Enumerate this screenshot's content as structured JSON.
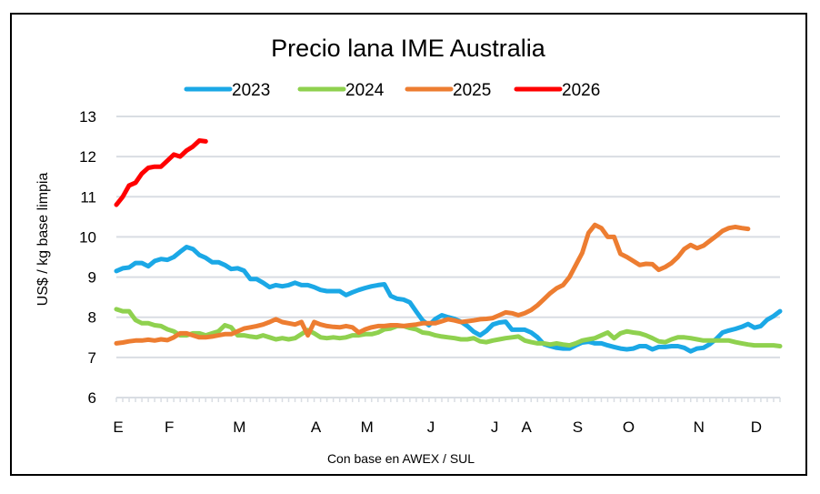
{
  "chart_data": {
    "type": "line",
    "title": "Precio lana IME Australia",
    "xlabel": "Con base en AWEX / SUL",
    "ylabel": "US$ / kg base limpia",
    "ylim": [
      6,
      13
    ],
    "yticks": [
      "6",
      "7",
      "8",
      "9",
      "10",
      "11",
      "12",
      "13"
    ],
    "grid": true,
    "legend_position": "top",
    "x_month_labels": [
      {
        "label": "E",
        "pos": 0
      },
      {
        "label": "F",
        "pos": 8
      },
      {
        "label": "M",
        "pos": 19
      },
      {
        "label": "A",
        "pos": 31
      },
      {
        "label": "M",
        "pos": 39
      },
      {
        "label": "J",
        "pos": 49
      },
      {
        "label": "J",
        "pos": 59
      },
      {
        "label": "A",
        "pos": 64
      },
      {
        "label": "S",
        "pos": 72
      },
      {
        "label": "O",
        "pos": 80
      },
      {
        "label": "N",
        "pos": 91
      },
      {
        "label": "D",
        "pos": 100
      }
    ],
    "x_points": 105,
    "series": [
      {
        "name": "2023",
        "color": "#1ba8e6",
        "start": 0,
        "values": [
          9.15,
          9.22,
          9.24,
          9.35,
          9.35,
          9.27,
          9.4,
          9.45,
          9.43,
          9.5,
          9.63,
          9.75,
          9.7,
          9.55,
          9.48,
          9.37,
          9.37,
          9.3,
          9.2,
          9.22,
          9.16,
          8.95,
          8.95,
          8.86,
          8.75,
          8.8,
          8.77,
          8.8,
          8.86,
          8.8,
          8.8,
          8.75,
          8.68,
          8.65,
          8.65,
          8.65,
          8.55,
          8.62,
          8.68,
          8.73,
          8.77,
          8.8,
          8.82,
          8.53,
          8.46,
          8.44,
          8.37,
          8.14,
          7.92,
          7.8,
          7.96,
          8.05,
          8.0,
          7.96,
          7.89,
          7.78,
          7.64,
          7.55,
          7.66,
          7.82,
          7.87,
          7.89,
          7.69,
          7.69,
          7.69,
          7.62,
          7.5,
          7.33,
          7.28,
          7.24,
          7.22,
          7.22,
          7.3,
          7.37,
          7.39,
          7.35,
          7.35,
          7.3,
          7.26,
          7.22,
          7.2,
          7.22,
          7.28,
          7.28,
          7.2,
          7.26,
          7.26,
          7.28,
          7.28,
          7.24,
          7.15,
          7.22,
          7.24,
          7.33,
          7.46,
          7.62,
          7.67,
          7.71,
          7.76,
          7.83,
          7.74,
          7.78,
          7.94,
          8.03,
          8.15
        ]
      },
      {
        "name": "2024",
        "color": "#8fd14f",
        "start": 0,
        "values": [
          8.2,
          8.15,
          8.15,
          7.93,
          7.85,
          7.85,
          7.8,
          7.78,
          7.7,
          7.65,
          7.55,
          7.55,
          7.6,
          7.6,
          7.55,
          7.6,
          7.65,
          7.8,
          7.75,
          7.55,
          7.55,
          7.52,
          7.5,
          7.55,
          7.5,
          7.45,
          7.48,
          7.45,
          7.48,
          7.58,
          7.68,
          7.6,
          7.5,
          7.48,
          7.5,
          7.48,
          7.5,
          7.55,
          7.55,
          7.58,
          7.58,
          7.62,
          7.7,
          7.72,
          7.78,
          7.78,
          7.73,
          7.7,
          7.62,
          7.6,
          7.55,
          7.52,
          7.5,
          7.48,
          7.45,
          7.45,
          7.48,
          7.4,
          7.38,
          7.42,
          7.45,
          7.48,
          7.5,
          7.52,
          7.42,
          7.38,
          7.35,
          7.35,
          7.32,
          7.35,
          7.32,
          7.3,
          7.35,
          7.42,
          7.45,
          7.48,
          7.55,
          7.62,
          7.48,
          7.6,
          7.65,
          7.62,
          7.6,
          7.55,
          7.48,
          7.4,
          7.38,
          7.45,
          7.5,
          7.5,
          7.48,
          7.45,
          7.42,
          7.42,
          7.42,
          7.42,
          7.42,
          7.38,
          7.35,
          7.32,
          7.3,
          7.3,
          7.3,
          7.3,
          7.28
        ]
      },
      {
        "name": "2025",
        "color": "#ed7d31",
        "start": 0,
        "values": [
          7.35,
          7.37,
          7.4,
          7.42,
          7.42,
          7.44,
          7.42,
          7.45,
          7.43,
          7.5,
          7.6,
          7.6,
          7.55,
          7.5,
          7.5,
          7.52,
          7.55,
          7.58,
          7.58,
          7.65,
          7.72,
          7.75,
          7.78,
          7.82,
          7.88,
          7.95,
          7.88,
          7.85,
          7.82,
          7.88,
          7.55,
          7.88,
          7.82,
          7.78,
          7.76,
          7.75,
          7.78,
          7.75,
          7.62,
          7.7,
          7.75,
          7.78,
          7.78,
          7.8,
          7.8,
          7.78,
          7.8,
          7.82,
          7.85,
          7.85,
          7.85,
          7.9,
          7.95,
          7.92,
          7.88,
          7.9,
          7.92,
          7.95,
          7.96,
          7.98,
          8.05,
          8.12,
          8.1,
          8.05,
          8.1,
          8.18,
          8.3,
          8.45,
          8.6,
          8.72,
          8.8,
          9.0,
          9.3,
          9.6,
          10.1,
          10.3,
          10.22,
          10.0,
          10.0,
          9.58,
          9.5,
          9.4,
          9.3,
          9.33,
          9.32,
          9.18,
          9.25,
          9.35,
          9.5,
          9.7,
          9.8,
          9.72,
          9.78,
          9.9,
          10.02,
          10.15,
          10.22,
          10.25,
          10.22,
          10.2
        ]
      },
      {
        "name": "2026",
        "color": "#ff0000",
        "start": 0,
        "values": [
          10.8,
          11.0,
          11.28,
          11.35,
          11.58,
          11.72,
          11.75,
          11.75,
          11.9,
          12.05,
          12.0,
          12.15,
          12.25,
          12.4,
          12.38
        ]
      }
    ]
  }
}
